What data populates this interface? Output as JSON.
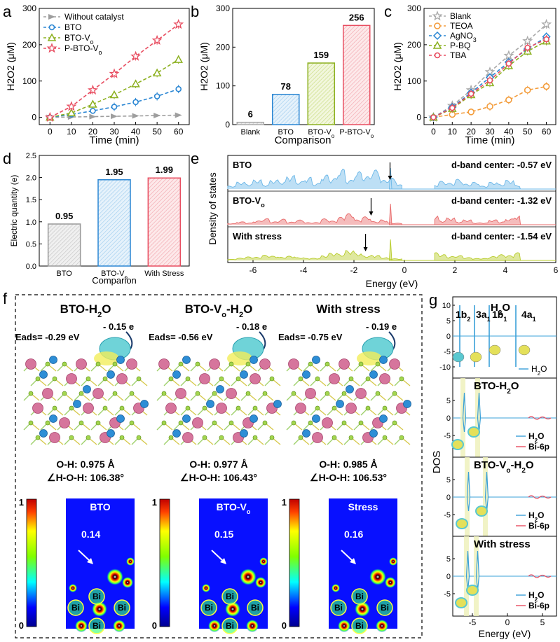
{
  "panels": {
    "a": {
      "label": "a",
      "chart_data": {
        "type": "line",
        "xlabel": "Time (min)",
        "ylabel": "H2O2 (μM)",
        "x": [
          0,
          10,
          20,
          30,
          40,
          50,
          60
        ],
        "xticks": [
          "0",
          "10",
          "20",
          "30",
          "40",
          "50",
          "60"
        ],
        "yticks": [
          "0",
          "100",
          "200",
          "300"
        ],
        "ylim": [
          -20,
          300
        ],
        "series": [
          {
            "name": "Without catalyst",
            "color": "#9e9e9e",
            "values": [
              0,
              1,
              2,
              3,
              4,
              5,
              6
            ]
          },
          {
            "name": "BTO",
            "color": "#2a86d3",
            "values": [
              0,
              8,
              18,
              29,
              42,
              58,
              78
            ]
          },
          {
            "name": "BTO-Vo",
            "color": "#8cb020",
            "values": [
              0,
              12,
              36,
              62,
              92,
              122,
              159
            ]
          },
          {
            "name": "P-BTO-Vo",
            "color": "#e84d60",
            "values": [
              0,
              30,
              75,
              120,
              168,
              212,
              256
            ]
          }
        ]
      }
    },
    "b": {
      "label": "b",
      "chart_data": {
        "type": "bar",
        "xlabel": "Comparison",
        "ylabel": "H2O2 (μM)",
        "categories": [
          "Blank",
          "BTO",
          "BTO-Vo",
          "P-BTO-Vo"
        ],
        "values": [
          6,
          78,
          159,
          256
        ],
        "value_labels": [
          "6",
          "78",
          "159",
          "256"
        ],
        "colors": [
          "#aaaaaa",
          "#2a86d3",
          "#8cb020",
          "#e84d60"
        ],
        "yticks": [
          "0",
          "100",
          "200",
          "300"
        ],
        "ylim": [
          0,
          300
        ]
      }
    },
    "c": {
      "label": "c",
      "chart_data": {
        "type": "line",
        "xlabel": "Time (min)",
        "ylabel": "H2O2 (μM)",
        "x": [
          0,
          10,
          20,
          30,
          40,
          50,
          60
        ],
        "xticks": [
          "0",
          "10",
          "20",
          "30",
          "40",
          "50",
          "60"
        ],
        "yticks": [
          "0",
          "100",
          "200",
          "300"
        ],
        "ylim": [
          -20,
          300
        ],
        "series": [
          {
            "name": "Blank",
            "color": "#a8a8a8",
            "values": [
              0,
              32,
              75,
              125,
              170,
              210,
              256
            ]
          },
          {
            "name": "TEOA",
            "color": "#f39c3b",
            "values": [
              0,
              8,
              15,
              30,
              48,
              75,
              85
            ]
          },
          {
            "name": "AgNO3",
            "color": "#2a86d3",
            "values": [
              0,
              28,
              68,
              110,
              152,
              188,
              222
            ]
          },
          {
            "name": "P-BQ",
            "color": "#8cb020",
            "values": [
              0,
              24,
              62,
              95,
              142,
              182,
              210
            ]
          },
          {
            "name": "TBA",
            "color": "#e84d60",
            "values": [
              0,
              26,
              65,
              102,
              148,
              192,
              215
            ]
          }
        ]
      }
    },
    "d": {
      "label": "d",
      "chart_data": {
        "type": "bar",
        "xlabel": "Comparion",
        "ylabel": "Electric quantity (e)",
        "categories": [
          "BTO",
          "BTO-Vo",
          "With Stress"
        ],
        "values": [
          0.95,
          1.95,
          1.99
        ],
        "value_labels": [
          "0.95",
          "1.95",
          "1.99"
        ],
        "colors": [
          "#999999",
          "#2a86d3",
          "#e84d60"
        ],
        "yticks": [
          "0.0",
          "0.5",
          "1.0",
          "1.5",
          "2.0",
          "2.5"
        ],
        "ylim": [
          0,
          2.5
        ]
      }
    },
    "e": {
      "label": "e",
      "xlabel": "Energy (eV)",
      "ylabel": "Density of states",
      "xticks": [
        "-6",
        "-4",
        "-2",
        "0",
        "2",
        "4",
        "6"
      ],
      "xlim": [
        -7,
        6
      ],
      "rows": [
        {
          "name": "BTO",
          "center_text": "d-band center: -0.57 eV",
          "center": -0.57,
          "color": "#6db8e8"
        },
        {
          "name": "BTO-Vo",
          "center_text": "d-band center: -1.32 eV",
          "center": -1.32,
          "color": "#e86a6a"
        },
        {
          "name": "With stress",
          "center_text": "d-band center: -1.54 eV",
          "center": -1.54,
          "color": "#b8cc2a"
        }
      ]
    },
    "f": {
      "label": "f",
      "structures": [
        {
          "title": "BTO-H2O",
          "eads": "Eads= -0.29 eV",
          "charge": "- 0.15 e",
          "oh": "O-H: 0.975 Å",
          "angle": "∠H-O-H: 106.38°",
          "map_title": "BTO",
          "map_value": "0.14"
        },
        {
          "title": "BTO-Vo-H2O",
          "eads": "Eads= -0.56 eV",
          "charge": "- 0.18 e",
          "oh": "O-H: 0.977 Å",
          "angle": "∠H-O-H: 106.43°",
          "map_title": "BTO-Vo",
          "map_value": "0.15"
        },
        {
          "title": "With stress",
          "eads": "Eads= -0.75 eV",
          "charge": "- 0.19 e",
          "oh": "O-H: 0.985 Å",
          "angle": "∠H-O-H: 106.53°",
          "map_title": "Stress",
          "map_value": "0.16"
        }
      ],
      "colorbar": {
        "max": "1",
        "min": "0"
      },
      "atom_label": "Bi"
    },
    "g": {
      "label": "g",
      "ylabel": "DOS",
      "xlabel": "Energy (eV)",
      "xticks": [
        "-5",
        "0",
        "5"
      ],
      "subpanels": [
        {
          "title": "H2O",
          "yticks": [
            "10",
            "5",
            "0",
            "-5",
            "-10"
          ],
          "orbitals": [
            "1b2",
            "3a1",
            "1b1",
            "4a1"
          ],
          "legend": [
            "H2O"
          ]
        },
        {
          "title": "BTO-H2O",
          "yticks": [
            "5",
            "0",
            "-5"
          ],
          "legend": [
            "H2O",
            "Bi-6p"
          ]
        },
        {
          "title": "BTO-Vo-H2O",
          "yticks": [
            "5",
            "0",
            "-5"
          ],
          "legend": [
            "H2O",
            "Bi-6p"
          ]
        },
        {
          "title": "With stress",
          "yticks": [
            "5",
            "0",
            "-5"
          ],
          "legend": [
            "H2O",
            "Bi-6p"
          ]
        }
      ]
    }
  }
}
